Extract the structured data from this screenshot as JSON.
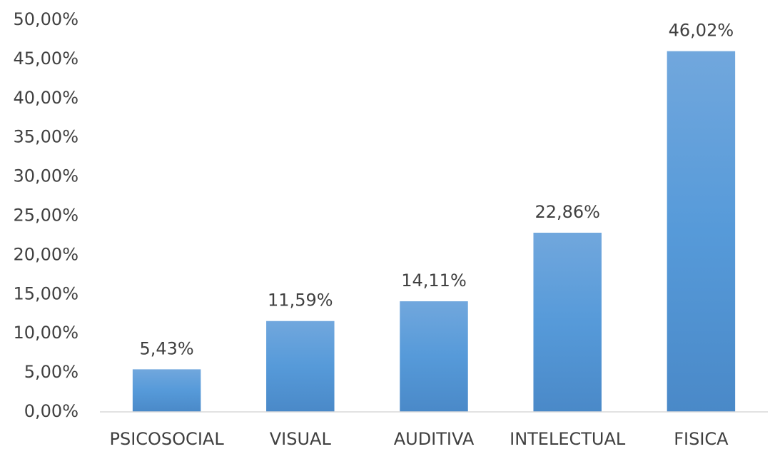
{
  "chart_data": {
    "type": "bar",
    "categories": [
      "PSICOSOCIAL",
      "VISUAL",
      "AUDITIVA",
      "INTELECTUAL",
      "FISICA"
    ],
    "values": [
      5.43,
      11.59,
      14.11,
      22.86,
      46.02
    ],
    "value_labels": [
      "5,43%",
      "11,59%",
      "14,11%",
      "22,86%",
      "46,02%"
    ],
    "color": "#5b9bd5",
    "ylim": [
      0,
      50
    ],
    "yticks": [
      {
        "value": 0,
        "label": "0,00%"
      },
      {
        "value": 5,
        "label": "5,00%"
      },
      {
        "value": 10,
        "label": "10,00%"
      },
      {
        "value": 15,
        "label": "15,00%"
      },
      {
        "value": 20,
        "label": "20,00%"
      },
      {
        "value": 25,
        "label": "25,00%"
      },
      {
        "value": 30,
        "label": "30,00%"
      },
      {
        "value": 35,
        "label": "35,00%"
      },
      {
        "value": 40,
        "label": "40,00%"
      },
      {
        "value": 45,
        "label": "45,00%"
      },
      {
        "value": 50,
        "label": "50,00%"
      }
    ],
    "grid": false
  }
}
